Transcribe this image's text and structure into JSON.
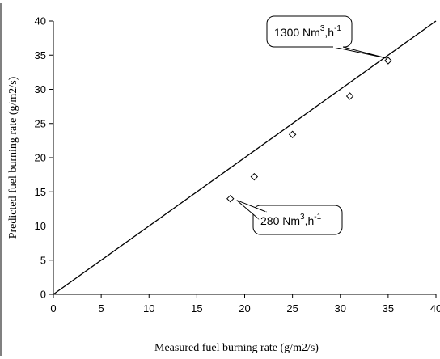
{
  "chart_data": {
    "type": "scatter",
    "title": "",
    "xlabel": "Measured fuel burning rate (g/m2/s)",
    "ylabel": "Predicted fuel burning rate (g/m2/s)",
    "xlim": [
      0,
      40
    ],
    "ylim": [
      0,
      40
    ],
    "x_ticks": [
      "0",
      "5",
      "10",
      "15",
      "20",
      "25",
      "30",
      "35",
      "40"
    ],
    "y_ticks": [
      "0",
      "5",
      "10",
      "15",
      "20",
      "25",
      "30",
      "35",
      "40"
    ],
    "grid": false,
    "marker": "diamond",
    "series": [
      {
        "points": [
          {
            "x": 18.5,
            "y": 14.0
          },
          {
            "x": 21.0,
            "y": 17.2
          },
          {
            "x": 25.0,
            "y": 23.4
          },
          {
            "x": 31.0,
            "y": 29.0
          },
          {
            "x": 35.0,
            "y": 34.2
          }
        ]
      }
    ],
    "reference_line": {
      "from": [
        0,
        0
      ],
      "to": [
        40,
        40
      ]
    },
    "annotations": [
      {
        "text_main": "1300 Nm",
        "sup1": "3",
        "text_mid": ",h",
        "sup2": "-1",
        "target": [
          35,
          34.2
        ]
      },
      {
        "text_main": "280 Nm",
        "sup1": "3",
        "text_mid": ",h",
        "sup2": "-1",
        "target": [
          18.5,
          14.0
        ]
      }
    ]
  }
}
